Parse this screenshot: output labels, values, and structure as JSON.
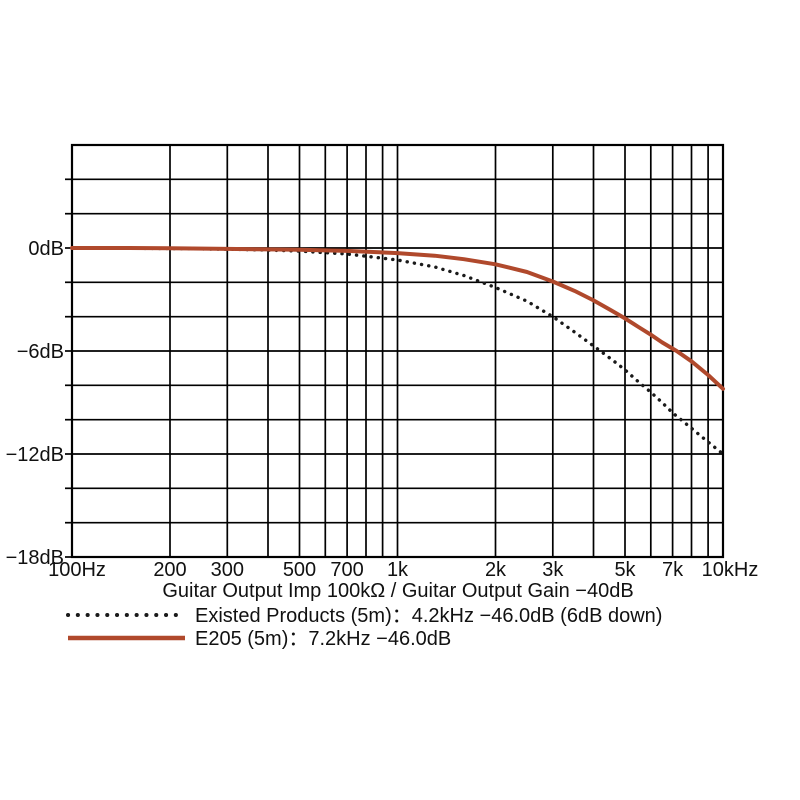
{
  "chart_data": {
    "type": "line",
    "x_scale": "log",
    "x_axis_title": "Guitar Output Imp 100kΩ / Guitar Output Gain −40dB",
    "x_range_hz": [
      100,
      10000
    ],
    "y_range_db": [
      -18,
      6
    ],
    "y_grid_step_db": 2,
    "grid": "on",
    "legend_position": "below",
    "background_color": "#ffffff",
    "grid_color": "#000000",
    "x_ticks": [
      {
        "hz": 100,
        "label": "100Hz"
      },
      {
        "hz": 200,
        "label": "200"
      },
      {
        "hz": 300,
        "label": "300"
      },
      {
        "hz": 500,
        "label": "500"
      },
      {
        "hz": 700,
        "label": "700"
      },
      {
        "hz": 1000,
        "label": "1k"
      },
      {
        "hz": 2000,
        "label": "2k"
      },
      {
        "hz": 3000,
        "label": "3k"
      },
      {
        "hz": 5000,
        "label": "5k"
      },
      {
        "hz": 7000,
        "label": "7k"
      },
      {
        "hz": 10000,
        "label": "10kHz"
      }
    ],
    "y_ticks": [
      {
        "db": 0,
        "label": "0dB"
      },
      {
        "db": -6,
        "label": "−6dB"
      },
      {
        "db": -12,
        "label": "−12dB"
      },
      {
        "db": -18,
        "label": "−18dB"
      }
    ],
    "series": [
      {
        "id": "existed-products",
        "name": "Existed Products (5m)",
        "legend_label": "Existed Products (5m)：4.2kHz −46.0dB (6dB down)",
        "style": "dotted",
        "color": "#1a1a1a",
        "minus6db_point_hz": 4200,
        "points": [
          [
            100,
            0
          ],
          [
            150,
            -0.02
          ],
          [
            200,
            -0.03
          ],
          [
            300,
            -0.07
          ],
          [
            400,
            -0.12
          ],
          [
            500,
            -0.18
          ],
          [
            700,
            -0.35
          ],
          [
            1000,
            -0.7
          ],
          [
            1300,
            -1.1
          ],
          [
            1600,
            -1.6
          ],
          [
            2000,
            -2.3
          ],
          [
            2500,
            -3.1
          ],
          [
            3000,
            -4.0
          ],
          [
            3500,
            -4.9
          ],
          [
            4200,
            -6.0
          ],
          [
            4700,
            -6.7
          ],
          [
            5000,
            -7.1
          ],
          [
            5500,
            -7.8
          ],
          [
            6000,
            -8.4
          ],
          [
            6500,
            -9.0
          ],
          [
            7000,
            -9.6
          ],
          [
            8000,
            -10.5
          ],
          [
            9000,
            -11.3
          ],
          [
            10000,
            -12.0
          ]
        ]
      },
      {
        "id": "e205",
        "name": "E205 (5m)",
        "legend_label": "E205 (5m)：7.2kHz −46.0dB",
        "style": "solid",
        "color": "#b0492c",
        "minus6db_point_hz": 7200,
        "points": [
          [
            100,
            0
          ],
          [
            150,
            0
          ],
          [
            200,
            -0.02
          ],
          [
            300,
            -0.05
          ],
          [
            400,
            -0.08
          ],
          [
            500,
            -0.1
          ],
          [
            700,
            -0.17
          ],
          [
            1000,
            -0.3
          ],
          [
            1300,
            -0.45
          ],
          [
            1600,
            -0.65
          ],
          [
            2000,
            -0.95
          ],
          [
            2500,
            -1.4
          ],
          [
            3000,
            -1.95
          ],
          [
            3500,
            -2.5
          ],
          [
            4000,
            -3.05
          ],
          [
            4500,
            -3.6
          ],
          [
            5000,
            -4.1
          ],
          [
            5500,
            -4.6
          ],
          [
            6000,
            -5.05
          ],
          [
            6500,
            -5.5
          ],
          [
            7200,
            -6.0
          ],
          [
            8000,
            -6.6
          ],
          [
            9000,
            -7.4
          ],
          [
            10000,
            -8.2
          ]
        ]
      }
    ]
  }
}
